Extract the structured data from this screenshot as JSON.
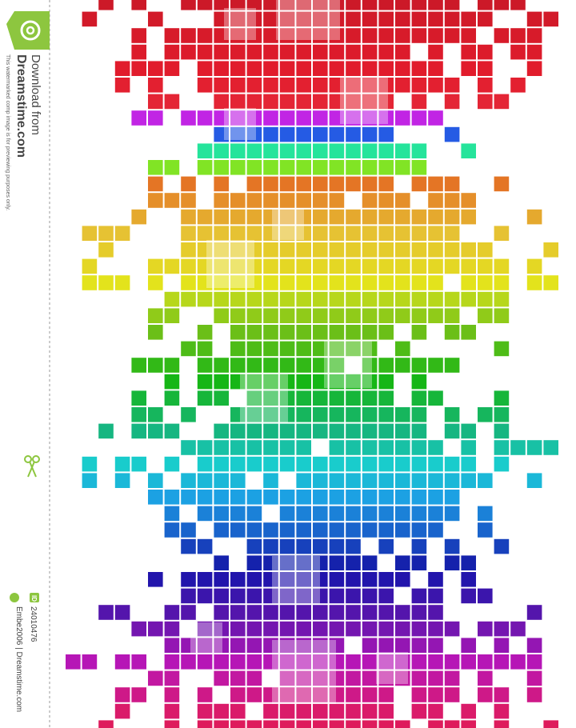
{
  "sidebar": {
    "download": "Download from",
    "site": "Dreamstime.com",
    "notice": "This watermarked comp image is for previewing purposes only.",
    "id_label": "ID",
    "id": "24010476",
    "credit": "Embe2006 | Dreamstime.com"
  }
}
